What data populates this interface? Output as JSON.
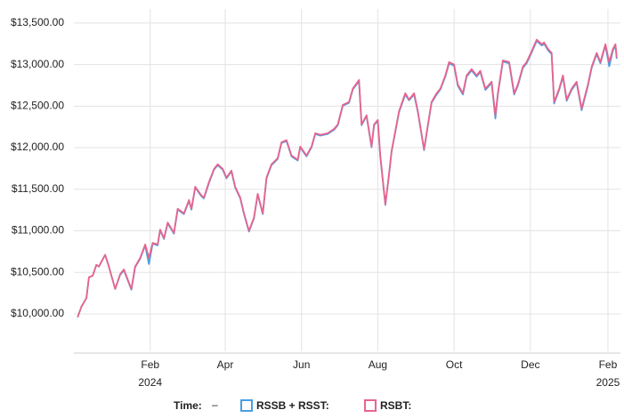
{
  "chart_data": {
    "type": "line",
    "x": [
      "2023-12-05",
      "2023-12-08",
      "2023-12-12",
      "2023-12-14",
      "2023-12-17",
      "2023-12-20",
      "2023-12-22",
      "2023-12-27",
      "2023-12-30",
      "2024-01-04",
      "2024-01-08",
      "2024-01-11",
      "2024-01-17",
      "2024-01-20",
      "2024-01-24",
      "2024-01-28",
      "2024-01-31",
      "2024-02-03",
      "2024-02-07",
      "2024-02-09",
      "2024-02-12",
      "2024-02-15",
      "2024-02-20",
      "2024-02-23",
      "2024-02-28",
      "2024-03-03",
      "2024-03-05",
      "2024-03-08",
      "2024-03-13",
      "2024-03-15",
      "2024-03-19",
      "2024-03-23",
      "2024-03-26",
      "2024-03-30",
      "2024-04-02",
      "2024-04-06",
      "2024-04-09",
      "2024-04-13",
      "2024-04-16",
      "2024-04-20",
      "2024-04-24",
      "2024-04-27",
      "2024-05-01",
      "2024-05-04",
      "2024-05-08",
      "2024-05-13",
      "2024-05-16",
      "2024-05-20",
      "2024-05-24",
      "2024-05-29",
      "2024-05-31",
      "2024-06-05",
      "2024-06-09",
      "2024-06-12",
      "2024-06-16",
      "2024-06-22",
      "2024-06-27",
      "2024-06-30",
      "2024-07-04",
      "2024-07-09",
      "2024-07-12",
      "2024-07-17",
      "2024-07-19",
      "2024-07-23",
      "2024-07-27",
      "2024-07-29",
      "2024-08-01",
      "2024-08-03",
      "2024-08-07",
      "2024-08-10",
      "2024-08-12",
      "2024-08-16",
      "2024-08-18",
      "2024-08-23",
      "2024-08-26",
      "2024-08-30",
      "2024-09-02",
      "2024-09-07",
      "2024-09-09",
      "2024-09-13",
      "2024-09-17",
      "2024-09-20",
      "2024-09-24",
      "2024-09-27",
      "2024-10-01",
      "2024-10-04",
      "2024-10-08",
      "2024-10-11",
      "2024-10-15",
      "2024-10-19",
      "2024-10-22",
      "2024-10-26",
      "2024-10-31",
      "2024-11-03",
      "2024-11-05",
      "2024-11-09",
      "2024-11-14",
      "2024-11-18",
      "2024-11-21",
      "2024-11-25",
      "2024-11-28",
      "2024-12-02",
      "2024-12-06",
      "2024-12-10",
      "2024-12-12",
      "2024-12-15",
      "2024-12-18",
      "2024-12-20",
      "2024-12-24",
      "2024-12-27",
      "2024-12-30",
      "2025-01-03",
      "2025-01-07",
      "2025-01-11",
      "2025-01-16",
      "2025-01-19",
      "2025-01-23",
      "2025-01-26",
      "2025-01-30",
      "2025-02-02",
      "2025-02-05",
      "2025-02-07",
      "2025-02-08"
    ],
    "series": [
      {
        "name": "RSSB + RSST:",
        "color": "#4a9fe0",
        "values": [
          9960,
          10085,
          10190,
          10440,
          10460,
          10590,
          10570,
          10710,
          10570,
          10300,
          10470,
          10525,
          10290,
          10560,
          10665,
          10825,
          10600,
          10845,
          10825,
          11005,
          10900,
          11090,
          10965,
          11255,
          11200,
          11360,
          11255,
          11520,
          11415,
          11390,
          11575,
          11735,
          11790,
          11735,
          11630,
          11715,
          11520,
          11390,
          11200,
          10990,
          11150,
          11435,
          11200,
          11630,
          11790,
          11865,
          12055,
          12080,
          11895,
          11845,
          12005,
          11895,
          12005,
          12165,
          12145,
          12165,
          12215,
          12270,
          12505,
          12540,
          12700,
          12800,
          12270,
          12380,
          12005,
          12270,
          12325,
          11895,
          11310,
          11680,
          11950,
          12270,
          12430,
          12640,
          12570,
          12640,
          12430,
          11970,
          12165,
          12540,
          12640,
          12700,
          12855,
          13015,
          12985,
          12745,
          12640,
          12855,
          12930,
          12855,
          12910,
          12695,
          12780,
          12350,
          12640,
          13035,
          13015,
          12640,
          12745,
          12960,
          13015,
          13145,
          13285,
          13230,
          13250,
          13175,
          13125,
          12530,
          12695,
          12855,
          12565,
          12695,
          12780,
          12450,
          12745,
          12960,
          13125,
          13015,
          13230,
          12980,
          13170,
          13230,
          13070
        ]
      },
      {
        "name": "RSBT:",
        "color": "#e8648e",
        "values": [
          9960,
          10085,
          10190,
          10440,
          10460,
          10590,
          10570,
          10710,
          10570,
          10300,
          10480,
          10535,
          10300,
          10570,
          10675,
          10835,
          10675,
          10855,
          10835,
          11015,
          10910,
          11100,
          10975,
          11265,
          11210,
          11370,
          11265,
          11530,
          11425,
          11400,
          11585,
          11745,
          11800,
          11745,
          11640,
          11725,
          11530,
          11400,
          11210,
          11000,
          11160,
          11445,
          11210,
          11640,
          11800,
          11875,
          12065,
          12090,
          11905,
          11855,
          12015,
          11905,
          12015,
          12175,
          12155,
          12175,
          12225,
          12280,
          12515,
          12550,
          12710,
          12815,
          12280,
          12390,
          12015,
          12280,
          12335,
          11905,
          11320,
          11690,
          11960,
          12280,
          12440,
          12655,
          12580,
          12655,
          12440,
          11980,
          12175,
          12550,
          12655,
          12710,
          12870,
          13030,
          13000,
          12760,
          12655,
          12870,
          12945,
          12870,
          12925,
          12710,
          12795,
          12390,
          12655,
          13050,
          13030,
          12655,
          12760,
          12975,
          13030,
          13160,
          13300,
          13245,
          13265,
          13190,
          13140,
          12550,
          12710,
          12870,
          12580,
          12710,
          12795,
          12470,
          12760,
          12975,
          13140,
          13030,
          13245,
          13030,
          13190,
          13245,
          13085
        ]
      }
    ],
    "xlim": [
      "2023-12-02",
      "2025-02-11"
    ],
    "xticks": [
      {
        "value": "2024-02-01",
        "label": "Feb",
        "year": "2024"
      },
      {
        "value": "2024-04-01",
        "label": "Apr"
      },
      {
        "value": "2024-06-01",
        "label": "Jun"
      },
      {
        "value": "2024-08-01",
        "label": "Aug"
      },
      {
        "value": "2024-10-01",
        "label": "Oct"
      },
      {
        "value": "2024-12-01",
        "label": "Dec"
      },
      {
        "value": "2025-02-01",
        "label": "Feb",
        "year": "2025"
      }
    ],
    "ylim": [
      9550,
      13670
    ],
    "yticks": [
      {
        "value": 10000,
        "label": "$10,000.00"
      },
      {
        "value": 10500,
        "label": "$10,500.00"
      },
      {
        "value": 11000,
        "label": "$11,000.00"
      },
      {
        "value": 11500,
        "label": "$11,500.00"
      },
      {
        "value": 12000,
        "label": "$12,000.00"
      },
      {
        "value": 12500,
        "label": "$12,500.00"
      },
      {
        "value": 13000,
        "label": "$13,000.00"
      },
      {
        "value": 13500,
        "label": "$13,500.00"
      }
    ],
    "grid": true,
    "legend": {
      "label": "Time:",
      "value": "–"
    }
  }
}
